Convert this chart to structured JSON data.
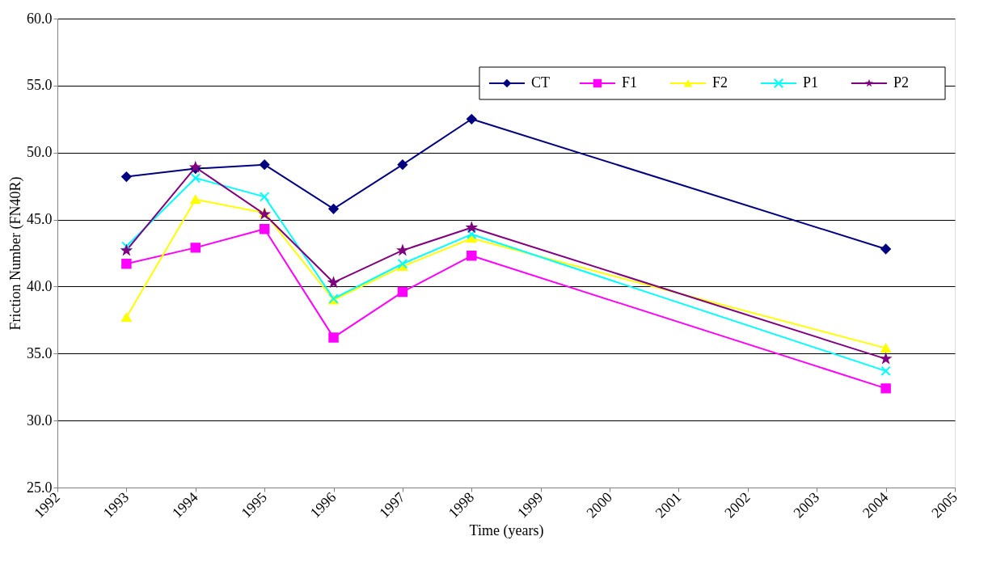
{
  "chart_data": {
    "type": "line",
    "xlabel": "Time (years)",
    "ylabel": "Friction Number (FN40R)",
    "xlim": [
      1992,
      2005
    ],
    "xticks": [
      1992,
      1993,
      1994,
      1995,
      1996,
      1997,
      1998,
      1999,
      2000,
      2001,
      2002,
      2003,
      2004,
      2005
    ],
    "ylim": [
      25,
      60
    ],
    "yticks": [
      {
        "value": 25,
        "label": "25.0"
      },
      {
        "value": 30,
        "label": "30.0"
      },
      {
        "value": 35,
        "label": "35.0"
      },
      {
        "value": 40,
        "label": "40.0"
      },
      {
        "value": 45,
        "label": "45.0"
      },
      {
        "value": 50,
        "label": "50.0"
      },
      {
        "value": 55,
        "label": "55.0"
      },
      {
        "value": 60,
        "label": "60.0"
      }
    ],
    "grid": "y",
    "legend": "top right",
    "x": [
      1993,
      1994,
      1995,
      1996,
      1997,
      1998,
      2004
    ],
    "series": [
      {
        "name": "CT",
        "color": "#000080",
        "marker": "diamond",
        "values": [
          48.2,
          48.8,
          49.1,
          45.8,
          49.1,
          52.5,
          42.8
        ]
      },
      {
        "name": "F1",
        "color": "#ff00ff",
        "marker": "square",
        "values": [
          41.7,
          42.9,
          44.3,
          36.2,
          39.6,
          42.3,
          32.4
        ]
      },
      {
        "name": "F2",
        "color": "#ffff00",
        "marker": "triangle",
        "values": [
          37.7,
          46.5,
          45.5,
          39.0,
          41.5,
          43.6,
          35.4
        ]
      },
      {
        "name": "P1",
        "color": "#00ffff",
        "marker": "cross",
        "values": [
          43.0,
          48.1,
          46.7,
          39.1,
          41.7,
          43.9,
          33.7
        ]
      },
      {
        "name": "P2",
        "color": "#800080",
        "marker": "star",
        "values": [
          42.7,
          48.9,
          45.4,
          40.3,
          42.7,
          44.4,
          34.6
        ]
      }
    ]
  }
}
